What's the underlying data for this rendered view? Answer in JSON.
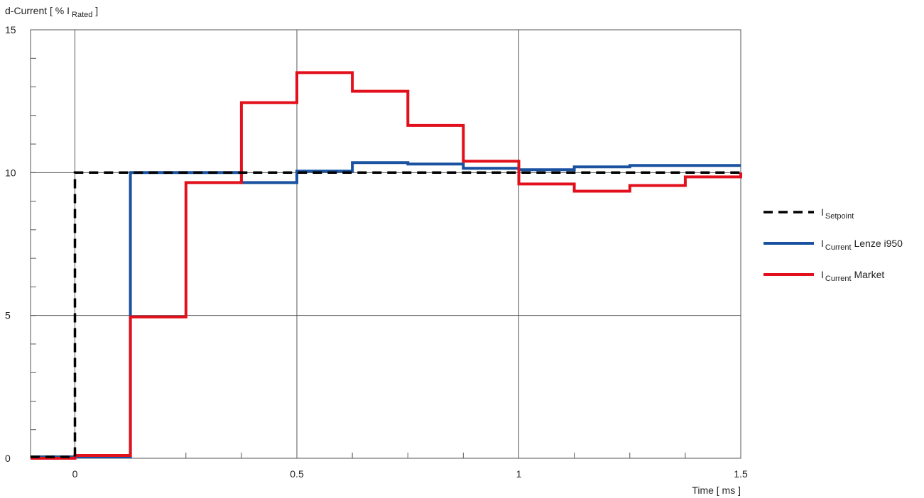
{
  "chart_data": {
    "type": "line",
    "step": true,
    "ylabel": "d-Current [ % I",
    "ylabel_subscript": "Rated",
    "ylabel_suffix": " ]",
    "xlabel": "Time [ ms ]",
    "xlim": [
      -0.1,
      1.5
    ],
    "ylim": [
      0,
      15
    ],
    "x_ticks": [
      0,
      0.5,
      1,
      1.5
    ],
    "x_tick_labels": [
      "0",
      "0.5",
      "1",
      "1.5"
    ],
    "y_ticks": [
      0,
      5,
      10,
      15
    ],
    "y_tick_labels": [
      "0",
      "5",
      "10",
      "15"
    ],
    "x_minor_step": 0.125,
    "y_minor_step": 1,
    "grid": true,
    "legend_position": "right",
    "series": [
      {
        "name": "I",
        "name_subscript": "Setpoint",
        "name_suffix": "",
        "color": "#000000",
        "style": "dashed",
        "x": [
          -0.1,
          0,
          0,
          1.5
        ],
        "y": [
          0.05,
          0.05,
          10,
          10
        ]
      },
      {
        "name": "I",
        "name_subscript": "Current",
        "name_suffix": " Lenze i950",
        "color": "#1a52a0",
        "style": "solid",
        "x": [
          -0.1,
          0.125,
          0.125,
          0.375,
          0.375,
          0.5,
          0.5,
          0.625,
          0.625,
          0.75,
          0.75,
          0.875,
          0.875,
          1.0,
          1.0,
          1.125,
          1.125,
          1.25,
          1.25,
          1.5
        ],
        "y": [
          0.05,
          0.05,
          10,
          10,
          9.65,
          9.65,
          10.05,
          10.05,
          10.35,
          10.35,
          10.3,
          10.3,
          10.15,
          10.15,
          10.1,
          10.1,
          10.2,
          10.2,
          10.25,
          10.25
        ]
      },
      {
        "name": "I",
        "name_subscript": "Current",
        "name_suffix": " Market",
        "color": "#e2101c",
        "style": "solid",
        "x": [
          -0.1,
          0,
          0,
          0.125,
          0.125,
          0.25,
          0.25,
          0.375,
          0.375,
          0.5,
          0.5,
          0.625,
          0.625,
          0.75,
          0.75,
          0.875,
          0.875,
          1.0,
          1.0,
          1.125,
          1.125,
          1.25,
          1.25,
          1.375,
          1.375,
          1.5,
          1.5
        ],
        "y": [
          0,
          0,
          0.1,
          0.1,
          4.95,
          4.95,
          9.65,
          9.65,
          12.45,
          12.45,
          13.5,
          13.5,
          12.85,
          12.85,
          11.65,
          11.65,
          10.4,
          10.4,
          9.6,
          9.6,
          9.35,
          9.35,
          9.55,
          9.55,
          9.85,
          9.85,
          10.0
        ]
      }
    ]
  }
}
